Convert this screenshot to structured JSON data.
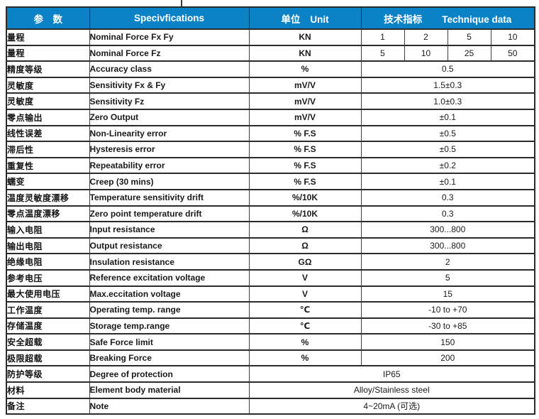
{
  "colors": {
    "header_bg": "#0c82c6",
    "header_text": "#ffffff",
    "border": "#2b2b2b",
    "body_text": "#1a1a1a"
  },
  "header": {
    "param_zh": "参　数",
    "spec_en": "Specivfications",
    "unit_zh": "单位",
    "unit_en": "Unit",
    "data_zh": "技术指标",
    "data_en": "Technique data"
  },
  "rows": [
    {
      "param": "量程",
      "spec": "Nominal Force Fx Fy",
      "unit": "KN",
      "values": [
        "1",
        "2",
        "5",
        "10"
      ]
    },
    {
      "param": "量程",
      "spec": "Nominal Force Fz",
      "unit": "KN",
      "values": [
        "5",
        "10",
        "25",
        "50"
      ]
    },
    {
      "param": "精度等级",
      "spec": "Accuracy class",
      "unit": "%",
      "value": "0.5"
    },
    {
      "param": "灵敏度",
      "spec": "Sensitivity Fx & Fy",
      "unit": "mV/V",
      "value": "1.5±0.3"
    },
    {
      "param": "灵敏度",
      "spec": "Sensitivity Fz",
      "unit": "mV/V",
      "value": "1.0±0.3"
    },
    {
      "param": "零点输出",
      "spec": "Zero Output",
      "unit": "mV/V",
      "value": "±0.1"
    },
    {
      "param": "线性误差",
      "spec": "Non-Linearity error",
      "unit": "% F.S",
      "value": "±0.5"
    },
    {
      "param": "滞后性",
      "spec": "Hysteresis error",
      "unit": "% F.S",
      "value": "±0.5"
    },
    {
      "param": "重复性",
      "spec": "Repeatability error",
      "unit": "% F.S",
      "value": "±0.2"
    },
    {
      "param": "蠕变",
      "spec": "Creep (30 mins)",
      "unit": "% F.S",
      "value": "±0.1"
    },
    {
      "param": "温度灵敏度漂移",
      "spec": "Temperature sensitivity drift",
      "unit": "%/10K",
      "value": "0.3"
    },
    {
      "param": "零点温度漂移",
      "spec": "Zero point temperature drift",
      "unit": "%/10K",
      "value": "0.3"
    },
    {
      "param": "输入电阻",
      "spec": "Input resistance",
      "unit": "Ω",
      "value": "300...800"
    },
    {
      "param": "输出电阻",
      "spec": "Output resistance",
      "unit": "Ω",
      "value": "300...800"
    },
    {
      "param": "绝缘电阻",
      "spec": "Insulation resistance",
      "unit": "GΩ",
      "value": "2"
    },
    {
      "param": "参考电压",
      "spec": "Reference excitation voltage",
      "unit": "V",
      "value": "5"
    },
    {
      "param": "最大使用电压",
      "spec": "Max.eccitation voltage",
      "unit": "V",
      "value": "15"
    },
    {
      "param": "工作温度",
      "spec": "Operating temp. range",
      "unit": "℃",
      "value": "-10 to +70"
    },
    {
      "param": "存储温度",
      "spec": "Storage temp.range",
      "unit": "℃",
      "value": "-30 to +85"
    },
    {
      "param": "安全超载",
      "spec": "Safe Force limit",
      "unit": "%",
      "value": "150"
    },
    {
      "param": "极限超载",
      "spec": "Breaking Force",
      "unit": "%",
      "value": "200"
    },
    {
      "param": "防护等级",
      "spec": "Degree of protection",
      "merged": "IP65"
    },
    {
      "param": "材料",
      "spec": "Element body material",
      "merged": "Alloy/Stainless steel"
    },
    {
      "param": "备注",
      "spec": "Note",
      "merged": "4~20mA (可选)"
    }
  ]
}
